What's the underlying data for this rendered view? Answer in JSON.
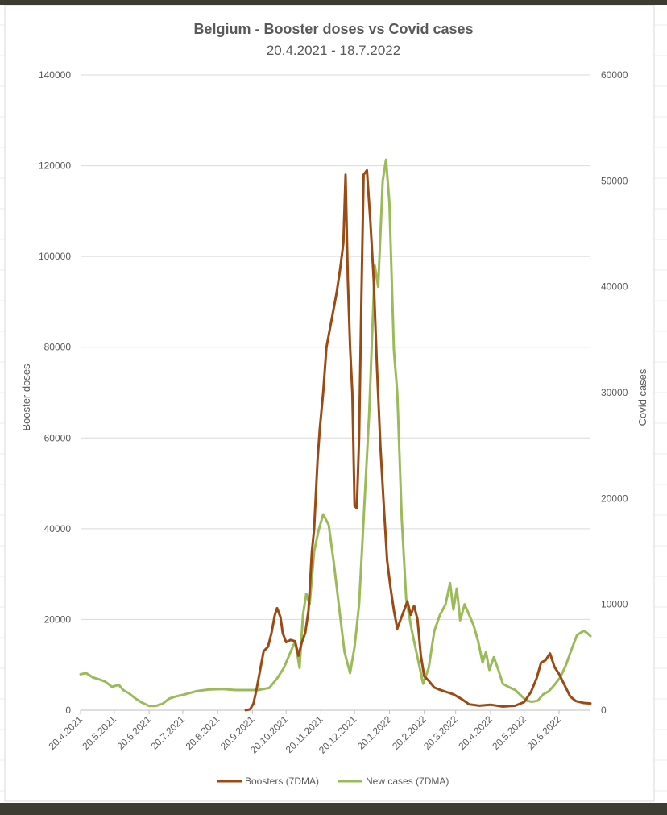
{
  "chart_data": {
    "type": "line",
    "title": "Belgium - Booster doses vs Covid cases",
    "subtitle": "20.4.2021 - 18.7.2022",
    "ylabel": "Booster doses",
    "y2label": "Covid cases",
    "ylim": [
      0,
      140000
    ],
    "y2lim": [
      0,
      60000
    ],
    "y_ticks": [
      "0",
      "20000",
      "40000",
      "60000",
      "80000",
      "100000",
      "120000",
      "140000"
    ],
    "y2_ticks": [
      "0",
      "10000",
      "20000",
      "30000",
      "40000",
      "50000",
      "60000"
    ],
    "x_ticks": [
      "20.4.2021",
      "20.5.2021",
      "20.6.2021",
      "20.7.2021",
      "20.8.2021",
      "20.9.2021",
      "20.10.2021",
      "20.11.2021",
      "20.12.2021",
      "20.1.2022",
      "20.2.2022",
      "20.3.2022",
      "20.4.2022",
      "20.5.2022",
      "20.6.2022"
    ],
    "grid": true,
    "legend_position": "bottom",
    "series": [
      {
        "name": "Boosters (7DMA)",
        "axis": "left",
        "color": "#9c4a14",
        "points": [
          [
            "2021-09-14",
            0
          ],
          [
            "2021-09-18",
            200
          ],
          [
            "2021-09-21",
            1500
          ],
          [
            "2021-09-24",
            5000
          ],
          [
            "2021-09-27",
            9000
          ],
          [
            "2021-09-30",
            13000
          ],
          [
            "2021-10-04",
            14000
          ],
          [
            "2021-10-07",
            17000
          ],
          [
            "2021-10-10",
            21000
          ],
          [
            "2021-10-12",
            22500
          ],
          [
            "2021-10-15",
            20500
          ],
          [
            "2021-10-17",
            17000
          ],
          [
            "2021-10-20",
            15000
          ],
          [
            "2021-10-24",
            15500
          ],
          [
            "2021-10-28",
            15200
          ],
          [
            "2021-10-31",
            12000
          ],
          [
            "2021-11-03",
            15000
          ],
          [
            "2021-11-06",
            17000
          ],
          [
            "2021-11-09",
            22000
          ],
          [
            "2021-11-12",
            35000
          ],
          [
            "2021-11-14",
            40000
          ],
          [
            "2021-11-17",
            55000
          ],
          [
            "2021-11-19",
            62000
          ],
          [
            "2021-11-22",
            70000
          ],
          [
            "2021-11-25",
            80000
          ],
          [
            "2021-11-28",
            84000
          ],
          [
            "2021-12-01",
            88000
          ],
          [
            "2021-12-04",
            92000
          ],
          [
            "2021-12-07",
            97000
          ],
          [
            "2021-12-10",
            103000
          ],
          [
            "2021-12-12",
            118000
          ],
          [
            "2021-12-14",
            95000
          ],
          [
            "2021-12-16",
            80000
          ],
          [
            "2021-12-18",
            70000
          ],
          [
            "2021-12-20",
            45000
          ],
          [
            "2021-12-22",
            44500
          ],
          [
            "2021-12-24",
            60000
          ],
          [
            "2021-12-26",
            90000
          ],
          [
            "2021-12-28",
            118000
          ],
          [
            "2021-12-31",
            119000
          ],
          [
            "2022-01-03",
            108000
          ],
          [
            "2022-01-06",
            95000
          ],
          [
            "2022-01-09",
            75000
          ],
          [
            "2022-01-12",
            58000
          ],
          [
            "2022-01-15",
            45000
          ],
          [
            "2022-01-18",
            33000
          ],
          [
            "2022-01-21",
            27000
          ],
          [
            "2022-01-24",
            22000
          ],
          [
            "2022-01-27",
            18000
          ],
          [
            "2022-01-30",
            20000
          ],
          [
            "2022-02-02",
            22000
          ],
          [
            "2022-02-05",
            24000
          ],
          [
            "2022-02-08",
            21000
          ],
          [
            "2022-02-11",
            23000
          ],
          [
            "2022-02-14",
            20000
          ],
          [
            "2022-02-17",
            12000
          ],
          [
            "2022-02-20",
            7500
          ],
          [
            "2022-02-24",
            6500
          ],
          [
            "2022-03-01",
            5000
          ],
          [
            "2022-03-06",
            4500
          ],
          [
            "2022-03-12",
            4000
          ],
          [
            "2022-03-18",
            3500
          ],
          [
            "2022-03-25",
            2500
          ],
          [
            "2022-04-01",
            1300
          ],
          [
            "2022-04-10",
            1000
          ],
          [
            "2022-04-20",
            1200
          ],
          [
            "2022-05-01",
            800
          ],
          [
            "2022-05-12",
            1000
          ],
          [
            "2022-05-20",
            1800
          ],
          [
            "2022-05-26",
            4000
          ],
          [
            "2022-05-31",
            7000
          ],
          [
            "2022-06-04",
            10500
          ],
          [
            "2022-06-08",
            11000
          ],
          [
            "2022-06-12",
            12500
          ],
          [
            "2022-06-16",
            9500
          ],
          [
            "2022-06-20",
            8000
          ],
          [
            "2022-06-25",
            5500
          ],
          [
            "2022-06-30",
            3000
          ],
          [
            "2022-07-05",
            2000
          ],
          [
            "2022-07-12",
            1600
          ],
          [
            "2022-07-18",
            1500
          ]
        ]
      },
      {
        "name": "New cases (7DMA)",
        "axis": "right",
        "color": "#9bbb59",
        "points": [
          [
            "2021-04-20",
            3400
          ],
          [
            "2021-04-25",
            3500
          ],
          [
            "2021-05-01",
            3100
          ],
          [
            "2021-05-07",
            2900
          ],
          [
            "2021-05-12",
            2700
          ],
          [
            "2021-05-18",
            2200
          ],
          [
            "2021-05-24",
            2400
          ],
          [
            "2021-05-28",
            1900
          ],
          [
            "2021-06-02",
            1600
          ],
          [
            "2021-06-08",
            1100
          ],
          [
            "2021-06-14",
            700
          ],
          [
            "2021-06-20",
            400
          ],
          [
            "2021-06-26",
            400
          ],
          [
            "2021-07-02",
            600
          ],
          [
            "2021-07-08",
            1100
          ],
          [
            "2021-07-14",
            1300
          ],
          [
            "2021-07-22",
            1500
          ],
          [
            "2021-08-01",
            1800
          ],
          [
            "2021-08-12",
            1950
          ],
          [
            "2021-08-24",
            2000
          ],
          [
            "2021-09-05",
            1900
          ],
          [
            "2021-09-15",
            1900
          ],
          [
            "2021-09-25",
            1900
          ],
          [
            "2021-10-05",
            2100
          ],
          [
            "2021-10-12",
            3000
          ],
          [
            "2021-10-18",
            4000
          ],
          [
            "2021-10-24",
            5500
          ],
          [
            "2021-10-28",
            6500
          ],
          [
            "2021-11-01",
            4000
          ],
          [
            "2021-11-04",
            9000
          ],
          [
            "2021-11-07",
            11000
          ],
          [
            "2021-11-10",
            10000
          ],
          [
            "2021-11-14",
            15000
          ],
          [
            "2021-11-18",
            17000
          ],
          [
            "2021-11-22",
            18500
          ],
          [
            "2021-11-27",
            17500
          ],
          [
            "2021-12-02",
            13500
          ],
          [
            "2021-12-07",
            9000
          ],
          [
            "2021-12-11",
            5500
          ],
          [
            "2021-12-16",
            3500
          ],
          [
            "2021-12-20",
            6000
          ],
          [
            "2021-12-24",
            10000
          ],
          [
            "2021-12-28",
            18000
          ],
          [
            "2022-01-02",
            28000
          ],
          [
            "2022-01-07",
            42000
          ],
          [
            "2022-01-10",
            40000
          ],
          [
            "2022-01-14",
            50000
          ],
          [
            "2022-01-17",
            52000
          ],
          [
            "2022-01-20",
            48000
          ],
          [
            "2022-01-24",
            34000
          ],
          [
            "2022-01-27",
            30000
          ],
          [
            "2022-01-31",
            18000
          ],
          [
            "2022-02-04",
            10500
          ],
          [
            "2022-02-09",
            7500
          ],
          [
            "2022-02-14",
            5000
          ],
          [
            "2022-02-19",
            2500
          ],
          [
            "2022-02-24",
            4000
          ],
          [
            "2022-03-01",
            7500
          ],
          [
            "2022-03-06",
            9000
          ],
          [
            "2022-03-11",
            10000
          ],
          [
            "2022-03-15",
            12000
          ],
          [
            "2022-03-18",
            9500
          ],
          [
            "2022-03-21",
            11500
          ],
          [
            "2022-03-24",
            8500
          ],
          [
            "2022-03-28",
            10000
          ],
          [
            "2022-04-01",
            9000
          ],
          [
            "2022-04-05",
            8000
          ],
          [
            "2022-04-09",
            6500
          ],
          [
            "2022-04-13",
            4500
          ],
          [
            "2022-04-16",
            5500
          ],
          [
            "2022-04-19",
            3800
          ],
          [
            "2022-04-23",
            5000
          ],
          [
            "2022-04-27",
            3800
          ],
          [
            "2022-05-01",
            2500
          ],
          [
            "2022-05-06",
            2200
          ],
          [
            "2022-05-12",
            1900
          ],
          [
            "2022-05-17",
            1400
          ],
          [
            "2022-05-22",
            900
          ],
          [
            "2022-05-27",
            800
          ],
          [
            "2022-06-01",
            900
          ],
          [
            "2022-06-06",
            1500
          ],
          [
            "2022-06-11",
            1800
          ],
          [
            "2022-06-16",
            2400
          ],
          [
            "2022-06-21",
            3100
          ],
          [
            "2022-06-26",
            4200
          ],
          [
            "2022-07-01",
            5700
          ],
          [
            "2022-07-06",
            7100
          ],
          [
            "2022-07-12",
            7500
          ],
          [
            "2022-07-15",
            7300
          ],
          [
            "2022-07-18",
            7000
          ]
        ]
      }
    ]
  }
}
